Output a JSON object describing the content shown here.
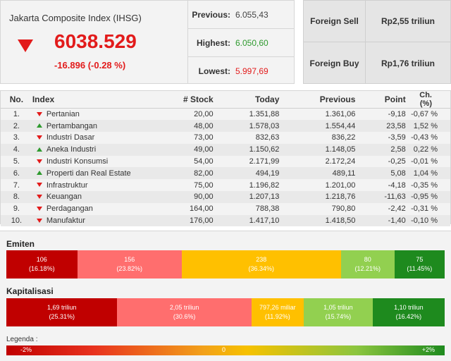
{
  "ihsg": {
    "title": "Jakarta Composite Index (IHSG)",
    "value": "6038.529",
    "change": "-16.896 (-0.28 %)",
    "direction": "down"
  },
  "stats": {
    "previous_label": "Previous:",
    "previous_value": "6.055,43",
    "highest_label": "Highest:",
    "highest_value": "6.050,60",
    "lowest_label": "Lowest:",
    "lowest_value": "5.997,69"
  },
  "foreign": {
    "sell_label": "Foreign Sell",
    "sell_value": "Rp2,55 triliun",
    "buy_label": "Foreign Buy",
    "buy_value": "Rp1,76 triliun"
  },
  "table": {
    "headers": [
      "No.",
      "Index",
      "# Stock",
      "Today",
      "Previous",
      "Point",
      "Ch. (%)"
    ],
    "rows": [
      {
        "no": "1.",
        "dir": "down",
        "name": "Pertanian",
        "stock": "20,00",
        "today": "1.351,88",
        "previous": "1.361,06",
        "point": "-9,18",
        "ch": "-0,67 %"
      },
      {
        "no": "2.",
        "dir": "up",
        "name": "Pertambangan",
        "stock": "48,00",
        "today": "1.578,03",
        "previous": "1.554,44",
        "point": "23,58",
        "ch": "1,52 %"
      },
      {
        "no": "3.",
        "dir": "down",
        "name": "Industri Dasar",
        "stock": "73,00",
        "today": "832,63",
        "previous": "836,22",
        "point": "-3,59",
        "ch": "-0,43 %"
      },
      {
        "no": "4.",
        "dir": "up",
        "name": "Aneka Industri",
        "stock": "49,00",
        "today": "1.150,62",
        "previous": "1.148,05",
        "point": "2,58",
        "ch": "0,22 %"
      },
      {
        "no": "5.",
        "dir": "down",
        "name": "Industri Konsumsi",
        "stock": "54,00",
        "today": "2.171,99",
        "previous": "2.172,24",
        "point": "-0,25",
        "ch": "-0,01 %"
      },
      {
        "no": "6.",
        "dir": "up",
        "name": "Properti dan Real Estate",
        "stock": "82,00",
        "today": "494,19",
        "previous": "489,11",
        "point": "5,08",
        "ch": "1,04 %"
      },
      {
        "no": "7.",
        "dir": "down",
        "name": "Infrastruktur",
        "stock": "75,00",
        "today": "1.196,82",
        "previous": "1.201,00",
        "point": "-4,18",
        "ch": "-0,35 %"
      },
      {
        "no": "8.",
        "dir": "down",
        "name": "Keuangan",
        "stock": "90,00",
        "today": "1.207,13",
        "previous": "1.218,76",
        "point": "-11,63",
        "ch": "-0,95 %"
      },
      {
        "no": "9.",
        "dir": "down",
        "name": "Perdagangan",
        "stock": "164,00",
        "today": "788,38",
        "previous": "790,80",
        "point": "-2,42",
        "ch": "-0,31 %"
      },
      {
        "no": "10.",
        "dir": "down",
        "name": "Manufaktur",
        "stock": "176,00",
        "today": "1.417,10",
        "previous": "1.418,50",
        "point": "-1,40",
        "ch": "-0,10 %"
      }
    ]
  },
  "emiten": {
    "title": "Emiten",
    "segments": [
      {
        "value": "106",
        "pct": "(16.18%)",
        "share": 16.18,
        "color": "#c00000"
      },
      {
        "value": "156",
        "pct": "(23.82%)",
        "share": 23.82,
        "color": "#ff6e6e"
      },
      {
        "value": "238",
        "pct": "(36.34%)",
        "share": 36.34,
        "color": "#ffc000"
      },
      {
        "value": "80",
        "pct": "(12.21%)",
        "share": 12.21,
        "color": "#92d050"
      },
      {
        "value": "75",
        "pct": "(11.45%)",
        "share": 11.45,
        "color": "#1e8a1e"
      }
    ]
  },
  "kapitalisasi": {
    "title": "Kapitalisasi",
    "segments": [
      {
        "value": "1,69 triliun",
        "pct": "(25.31%)",
        "share": 25.31,
        "color": "#c00000"
      },
      {
        "value": "2,05 triliun",
        "pct": "(30.6%)",
        "share": 30.6,
        "color": "#ff6e6e"
      },
      {
        "value": "797,26 miliar",
        "pct": "(11.92%)",
        "share": 11.92,
        "color": "#ffc000"
      },
      {
        "value": "1,05 triliun",
        "pct": "(15.74%)",
        "share": 15.74,
        "color": "#92d050"
      },
      {
        "value": "1,10 triliun",
        "pct": "(16.42%)",
        "share": 16.42,
        "color": "#1e8a1e"
      }
    ]
  },
  "legend": {
    "title": "Legenda :",
    "left": "-2%",
    "middle": "0",
    "right": "+2%"
  }
}
